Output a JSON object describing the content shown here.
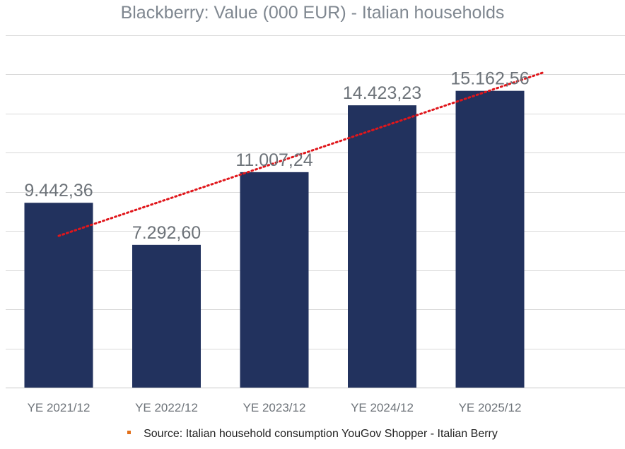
{
  "chart_data": {
    "type": "bar",
    "title": "Blackberry: Value (000 EUR) - Italian households",
    "categories": [
      "YE 2021/12",
      "YE 2022/12",
      "YE 2023/12",
      "YE 2024/12",
      "YE 2025/12"
    ],
    "values": [
      9442.36,
      7292.6,
      11007.24,
      14423.23,
      15162.56
    ],
    "value_labels": [
      "9.442,36",
      "7.292,60",
      "11.007,24",
      "14.423,23",
      "15.162,56"
    ],
    "xlabel": "",
    "ylabel": "",
    "ylim": [
      0,
      18000
    ],
    "grid": true,
    "trendline": {
      "type": "linear",
      "style": "dotted"
    },
    "legend": {
      "position": "bottom",
      "entries": [
        "Source: Italian household consumption YouGov Shopper - Italian Berry"
      ]
    },
    "colors": {
      "bar": "#22325e",
      "trend": "#e0161b",
      "grid": "#d9d9d9",
      "legend_marker": "#e2701a"
    }
  }
}
